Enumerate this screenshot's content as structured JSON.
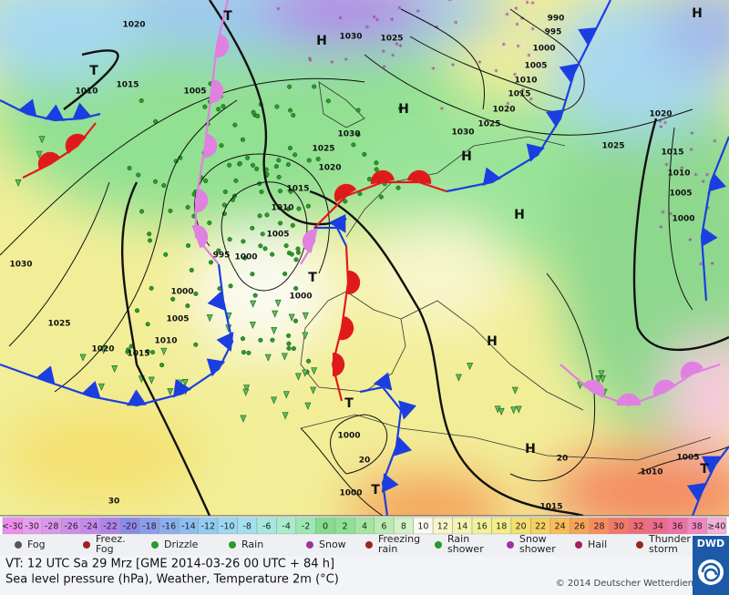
{
  "map": {
    "labels": [
      "1020",
      "1030",
      "1025",
      "H",
      "H",
      "990",
      "995",
      "1000",
      "1005",
      "1010",
      "1015",
      "1020",
      "1025",
      "1030",
      "1025",
      "1030",
      "1025",
      "1020",
      "1015",
      "1010",
      "1005",
      "1000",
      "995",
      "1000",
      "1000",
      "1005",
      "1010",
      "1015",
      "1020",
      "1025",
      "1030",
      "1005",
      "1015",
      "1010",
      "1020",
      "1015",
      "1010",
      "1005",
      "1000",
      "1010",
      "1005",
      "1015",
      "1000",
      "1000",
      "H",
      "H",
      "H",
      "H",
      "H",
      "T",
      "T",
      "T",
      "T",
      "T",
      "T",
      "20",
      "20",
      "30"
    ]
  },
  "colorbar": {
    "cells": [
      {
        "label": "<-30",
        "color": "#f08cf0"
      },
      {
        "label": "-30",
        "color": "#e89ef0"
      },
      {
        "label": "-28",
        "color": "#dc96ee"
      },
      {
        "label": "-26",
        "color": "#d08eec"
      },
      {
        "label": "-24",
        "color": "#c488ea"
      },
      {
        "label": "-22",
        "color": "#b082e8"
      },
      {
        "label": "-20",
        "color": "#8c8ae8"
      },
      {
        "label": "-18",
        "color": "#8a9cec"
      },
      {
        "label": "-16",
        "color": "#8aaeee"
      },
      {
        "label": "-14",
        "color": "#8cbef0"
      },
      {
        "label": "-12",
        "color": "#92ccf2"
      },
      {
        "label": "-10",
        "color": "#9cd8f4"
      },
      {
        "label": "-8",
        "color": "#a2e0ee"
      },
      {
        "label": "-6",
        "color": "#a6e8e0"
      },
      {
        "label": "-4",
        "color": "#a8eccc"
      },
      {
        "label": "-2",
        "color": "#9ce8b4"
      },
      {
        "label": "0",
        "color": "#84dc8c"
      },
      {
        "label": "2",
        "color": "#8ee094"
      },
      {
        "label": "4",
        "color": "#a2e6a0"
      },
      {
        "label": "6",
        "color": "#b8ecb0"
      },
      {
        "label": "8",
        "color": "#d4f2c8"
      },
      {
        "label": "10",
        "color": "#fafaf0"
      },
      {
        "label": "12",
        "color": "#f6f6c6"
      },
      {
        "label": "14",
        "color": "#f4f4b0"
      },
      {
        "label": "16",
        "color": "#f2f29c"
      },
      {
        "label": "18",
        "color": "#f2ee88"
      },
      {
        "label": "20",
        "color": "#f4e070"
      },
      {
        "label": "22",
        "color": "#f6d060"
      },
      {
        "label": "24",
        "color": "#f8bc58"
      },
      {
        "label": "26",
        "color": "#f8a456"
      },
      {
        "label": "28",
        "color": "#f88c5c"
      },
      {
        "label": "30",
        "color": "#f47868"
      },
      {
        "label": "32",
        "color": "#f06c78"
      },
      {
        "label": "34",
        "color": "#ee6a8c"
      },
      {
        "label": "36",
        "color": "#ee72a6"
      },
      {
        "label": "38",
        "color": "#f088c0"
      },
      {
        "label": "≥40",
        "color": "#f4b0d8"
      }
    ]
  },
  "legend": {
    "items": [
      {
        "lines": [
          "Fog"
        ]
      },
      {
        "lines": [
          "Freez.",
          "Fog"
        ]
      },
      {
        "lines": [
          "Drizzle"
        ]
      },
      {
        "lines": [
          "Rain"
        ]
      },
      {
        "lines": [
          "Snow"
        ]
      },
      {
        "lines": [
          "Freezing",
          "rain"
        ]
      },
      {
        "lines": [
          "Rain",
          "shower"
        ]
      },
      {
        "lines": [
          "Snow",
          "shower"
        ]
      },
      {
        "lines": [
          "Hail"
        ]
      },
      {
        "lines": [
          "Thunder",
          "storm"
        ]
      }
    ]
  },
  "footer": {
    "valid_time": "VT: 12 UTC Sa  29 Mrz [GME 2014-03-26  00 UTC + 84 h]",
    "description": "Sea level pressure (hPa), Weather, Temperature 2m (°C)",
    "copyright": "© 2014 Deutscher Wetterdienst",
    "logo": "DWD"
  }
}
